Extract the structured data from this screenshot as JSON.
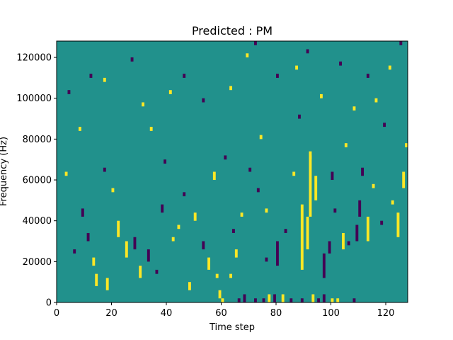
{
  "chart_data": {
    "type": "heatmap",
    "title": "Predicted : PM",
    "xlabel": "Time step",
    "ylabel": "Frequency (Hz)",
    "xlim": [
      0,
      128
    ],
    "ylim": [
      0,
      128000
    ],
    "x_ticks": [
      0,
      20,
      40,
      60,
      80,
      100,
      120
    ],
    "y_ticks": [
      0,
      20000,
      40000,
      60000,
      80000,
      100000,
      120000
    ],
    "x_tick_labels": [
      "0",
      "20",
      "40",
      "60",
      "80",
      "100",
      "120"
    ],
    "y_tick_labels": [
      "0",
      "20000",
      "40000",
      "60000",
      "80000",
      "100000",
      "120000"
    ],
    "colormap": "viridis",
    "background_level": "mid",
    "colors": {
      "background": "#21918c",
      "high": "#fde725",
      "low": "#440154"
    },
    "bin_height_hz": 2000,
    "cells": [
      {
        "t": 59,
        "f": 2000,
        "level": "high",
        "span": 2
      },
      {
        "t": 60,
        "f": 0,
        "level": "high"
      },
      {
        "t": 66,
        "f": 0,
        "level": "low"
      },
      {
        "t": 68,
        "f": 0,
        "level": "low",
        "span": 2
      },
      {
        "t": 72,
        "f": 0,
        "level": "low"
      },
      {
        "t": 75,
        "f": 0,
        "level": "low"
      },
      {
        "t": 77,
        "f": 0,
        "level": "high",
        "span": 2
      },
      {
        "t": 79,
        "f": 0,
        "level": "low",
        "span": 2
      },
      {
        "t": 82,
        "f": 0,
        "level": "high",
        "span": 2
      },
      {
        "t": 85,
        "f": 0,
        "level": "low"
      },
      {
        "t": 89,
        "f": 0,
        "level": "low"
      },
      {
        "t": 93,
        "f": 0,
        "level": "high",
        "span": 2
      },
      {
        "t": 95,
        "f": 0,
        "level": "low"
      },
      {
        "t": 97,
        "f": 0,
        "level": "low",
        "span": 2
      },
      {
        "t": 100,
        "f": 0,
        "level": "high"
      },
      {
        "t": 102,
        "f": 0,
        "level": "high"
      },
      {
        "t": 108,
        "f": 0,
        "level": "low"
      },
      {
        "t": 14,
        "f": 8000,
        "level": "high",
        "span": 3
      },
      {
        "t": 18,
        "f": 6000,
        "level": "high",
        "span": 3
      },
      {
        "t": 36,
        "f": 14000,
        "level": "low"
      },
      {
        "t": 48,
        "f": 6000,
        "level": "high",
        "span": 2
      },
      {
        "t": 55,
        "f": 16000,
        "level": "high",
        "span": 3
      },
      {
        "t": 58,
        "f": 12000,
        "level": "high"
      },
      {
        "t": 63,
        "f": 12000,
        "level": "high"
      },
      {
        "t": 65,
        "f": 22000,
        "level": "high",
        "span": 2
      },
      {
        "t": 76,
        "f": 20000,
        "level": "low"
      },
      {
        "t": 80,
        "f": 18000,
        "level": "low",
        "span": 6
      },
      {
        "t": 89,
        "f": 16000,
        "level": "high",
        "span": 16
      },
      {
        "t": 91,
        "f": 26000,
        "level": "high",
        "span": 8
      },
      {
        "t": 92,
        "f": 42000,
        "level": "high",
        "span": 16
      },
      {
        "t": 94,
        "f": 50000,
        "level": "high",
        "span": 6
      },
      {
        "t": 97,
        "f": 12000,
        "level": "low",
        "span": 6
      },
      {
        "t": 99,
        "f": 24000,
        "level": "low",
        "span": 3
      },
      {
        "t": 104,
        "f": 26000,
        "level": "high",
        "span": 4
      },
      {
        "t": 109,
        "f": 30000,
        "level": "low",
        "span": 4
      },
      {
        "t": 110,
        "f": 42000,
        "level": "low",
        "span": 4
      },
      {
        "t": 113,
        "f": 30000,
        "level": "high",
        "span": 6
      },
      {
        "t": 124,
        "f": 32000,
        "level": "high",
        "span": 6
      },
      {
        "t": 126,
        "f": 56000,
        "level": "high",
        "span": 4
      },
      {
        "t": 22,
        "f": 32000,
        "level": "high",
        "span": 4
      },
      {
        "t": 25,
        "f": 22000,
        "level": "high",
        "span": 4
      },
      {
        "t": 28,
        "f": 26000,
        "level": "low",
        "span": 3
      },
      {
        "t": 30,
        "f": 12000,
        "level": "high",
        "span": 3
      },
      {
        "t": 33,
        "f": 20000,
        "level": "low",
        "span": 3
      },
      {
        "t": 9,
        "f": 42000,
        "level": "low",
        "span": 2
      },
      {
        "t": 11,
        "f": 30000,
        "level": "low",
        "span": 2
      },
      {
        "t": 13,
        "f": 18000,
        "level": "high",
        "span": 2
      },
      {
        "t": 38,
        "f": 44000,
        "level": "low",
        "span": 2
      },
      {
        "t": 44,
        "f": 36000,
        "level": "high"
      },
      {
        "t": 50,
        "f": 40000,
        "level": "high",
        "span": 2
      },
      {
        "t": 53,
        "f": 26000,
        "level": "low",
        "span": 2
      },
      {
        "t": 57,
        "f": 60000,
        "level": "high",
        "span": 2
      },
      {
        "t": 70,
        "f": 64000,
        "level": "low"
      },
      {
        "t": 73,
        "f": 54000,
        "level": "low"
      },
      {
        "t": 88,
        "f": 90000,
        "level": "low"
      },
      {
        "t": 92,
        "f": 70000,
        "level": "high"
      },
      {
        "t": 100,
        "f": 60000,
        "level": "low",
        "span": 2
      },
      {
        "t": 105,
        "f": 76000,
        "level": "high"
      },
      {
        "t": 111,
        "f": 62000,
        "level": "low",
        "span": 2
      },
      {
        "t": 116,
        "f": 98000,
        "level": "high"
      },
      {
        "t": 119,
        "f": 86000,
        "level": "low"
      },
      {
        "t": 4,
        "f": 102000,
        "level": "low"
      },
      {
        "t": 8,
        "f": 84000,
        "level": "high"
      },
      {
        "t": 12,
        "f": 110000,
        "level": "low"
      },
      {
        "t": 17,
        "f": 108000,
        "level": "high"
      },
      {
        "t": 27,
        "f": 118000,
        "level": "low"
      },
      {
        "t": 31,
        "f": 96000,
        "level": "high"
      },
      {
        "t": 41,
        "f": 102000,
        "level": "high"
      },
      {
        "t": 46,
        "f": 110000,
        "level": "low"
      },
      {
        "t": 53,
        "f": 98000,
        "level": "low"
      },
      {
        "t": 63,
        "f": 104000,
        "level": "high"
      },
      {
        "t": 69,
        "f": 120000,
        "level": "high"
      },
      {
        "t": 72,
        "f": 126000,
        "level": "low"
      },
      {
        "t": 80,
        "f": 110000,
        "level": "low"
      },
      {
        "t": 87,
        "f": 114000,
        "level": "high"
      },
      {
        "t": 91,
        "f": 122000,
        "level": "low"
      },
      {
        "t": 96,
        "f": 100000,
        "level": "high"
      },
      {
        "t": 103,
        "f": 116000,
        "level": "low"
      },
      {
        "t": 108,
        "f": 94000,
        "level": "high"
      },
      {
        "t": 113,
        "f": 110000,
        "level": "low"
      },
      {
        "t": 121,
        "f": 114000,
        "level": "high"
      },
      {
        "t": 125,
        "f": 126000,
        "level": "low"
      },
      {
        "t": 3,
        "f": 62000,
        "level": "high"
      },
      {
        "t": 6,
        "f": 24000,
        "level": "low"
      },
      {
        "t": 17,
        "f": 64000,
        "level": "low"
      },
      {
        "t": 20,
        "f": 54000,
        "level": "high"
      },
      {
        "t": 34,
        "f": 84000,
        "level": "high"
      },
      {
        "t": 39,
        "f": 68000,
        "level": "low"
      },
      {
        "t": 42,
        "f": 30000,
        "level": "high"
      },
      {
        "t": 46,
        "f": 52000,
        "level": "low"
      },
      {
        "t": 61,
        "f": 70000,
        "level": "low"
      },
      {
        "t": 64,
        "f": 34000,
        "level": "low"
      },
      {
        "t": 67,
        "f": 42000,
        "level": "high"
      },
      {
        "t": 74,
        "f": 80000,
        "level": "high"
      },
      {
        "t": 76,
        "f": 44000,
        "level": "high"
      },
      {
        "t": 83,
        "f": 34000,
        "level": "low"
      },
      {
        "t": 86,
        "f": 62000,
        "level": "high"
      },
      {
        "t": 101,
        "f": 44000,
        "level": "low"
      },
      {
        "t": 106,
        "f": 28000,
        "level": "low"
      },
      {
        "t": 115,
        "f": 56000,
        "level": "high"
      },
      {
        "t": 118,
        "f": 38000,
        "level": "low"
      },
      {
        "t": 122,
        "f": 48000,
        "level": "high"
      },
      {
        "t": 127,
        "f": 76000,
        "level": "high"
      }
    ]
  }
}
